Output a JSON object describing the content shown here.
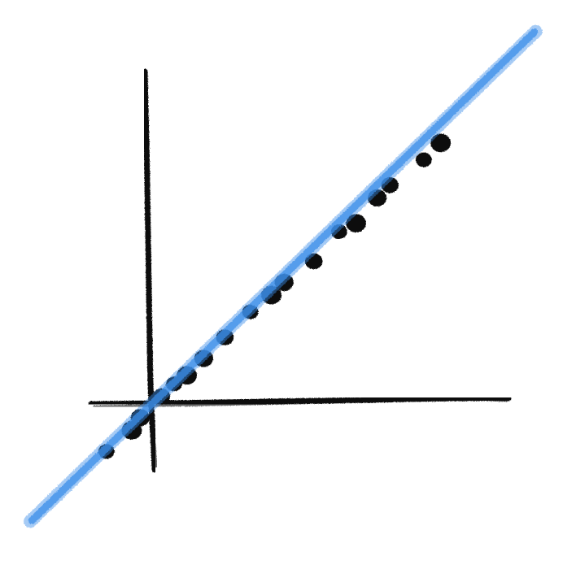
{
  "chart_data": {
    "type": "scatter",
    "title": "",
    "xlabel": "",
    "ylabel": "",
    "grid": false,
    "style": "hand-drawn sketch",
    "colors": {
      "axes": "#111111",
      "points": "#111111",
      "fit_line": "#3b8eea"
    },
    "xlim": [
      -1,
      8.5
    ],
    "ylim": [
      -1.5,
      7.5
    ],
    "points": {
      "x": [
        -1.1,
        -0.5,
        -0.3,
        0.2,
        0.5,
        0.8,
        1.2,
        1.7,
        2.3,
        2.8,
        3.1,
        3.8,
        4.4,
        4.8,
        5.3,
        5.6,
        6.4,
        6.8
      ],
      "y": [
        -1.2,
        -0.7,
        -0.4,
        0.1,
        0.4,
        0.6,
        1.0,
        1.5,
        2.1,
        2.5,
        2.8,
        3.3,
        4.0,
        4.2,
        4.8,
        5.1,
        5.7,
        6.1
      ]
    },
    "fit_line": {
      "slope": 0.97,
      "intercept": -0.04
    }
  }
}
